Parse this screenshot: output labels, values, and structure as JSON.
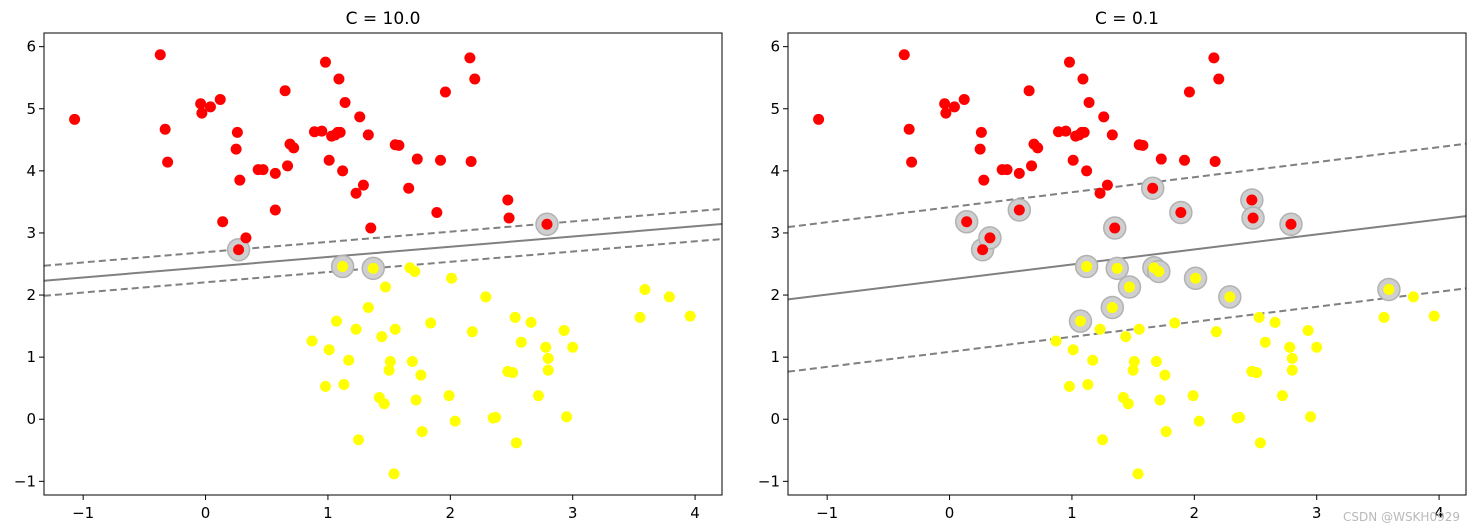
{
  "watermark": "CSDN @WSKH0929",
  "chart_data": [
    {
      "type": "scatter",
      "title": "C = 10.0",
      "xlim": [
        -1.32,
        4.22
      ],
      "ylim": [
        -1.22,
        6.22
      ],
      "xticks": [
        -1,
        0,
        1,
        2,
        3,
        4
      ],
      "yticks": [
        -1,
        0,
        1,
        2,
        3,
        4,
        5,
        6
      ],
      "decision_boundary": {
        "slope": 0.165,
        "intercept": 2.448,
        "margin": 0.2425
      },
      "series": [
        {
          "color": "#ff0000",
          "points": [
            [
              -1.07,
              4.83
            ],
            [
              -0.37,
              5.87
            ],
            [
              -0.33,
              4.67
            ],
            [
              -0.31,
              4.14
            ],
            [
              -0.04,
              5.08
            ],
            [
              -0.03,
              4.93
            ],
            [
              0.04,
              5.03
            ],
            [
              0.12,
              5.15
            ],
            [
              0.14,
              3.18
            ],
            [
              0.25,
              4.35
            ],
            [
              0.26,
              4.62
            ],
            [
              0.27,
              2.73
            ],
            [
              0.28,
              3.85
            ],
            [
              0.33,
              2.92
            ],
            [
              0.43,
              4.02
            ],
            [
              0.47,
              4.02
            ],
            [
              0.57,
              3.96
            ],
            [
              0.57,
              3.37
            ],
            [
              0.65,
              5.29
            ],
            [
              0.67,
              4.08
            ],
            [
              0.69,
              4.43
            ],
            [
              0.72,
              4.37
            ],
            [
              0.89,
              4.63
            ],
            [
              0.95,
              4.64
            ],
            [
              0.98,
              5.75
            ],
            [
              1.01,
              4.17
            ],
            [
              1.03,
              4.56
            ],
            [
              1.06,
              4.58
            ],
            [
              1.08,
              4.62
            ],
            [
              1.09,
              5.48
            ],
            [
              1.1,
              4.62
            ],
            [
              1.12,
              4.0
            ],
            [
              1.14,
              5.1
            ],
            [
              1.23,
              3.64
            ],
            [
              1.26,
              4.87
            ],
            [
              1.29,
              3.77
            ],
            [
              1.33,
              4.58
            ],
            [
              1.35,
              3.08
            ],
            [
              1.55,
              4.42
            ],
            [
              1.58,
              4.41
            ],
            [
              1.66,
              3.72
            ],
            [
              1.73,
              4.19
            ],
            [
              1.89,
              3.33
            ],
            [
              1.92,
              4.17
            ],
            [
              1.96,
              5.27
            ],
            [
              2.16,
              5.82
            ],
            [
              2.17,
              4.15
            ],
            [
              2.2,
              5.48
            ],
            [
              2.47,
              3.53
            ],
            [
              2.48,
              3.24
            ],
            [
              2.79,
              3.14
            ]
          ]
        },
        {
          "color": "#ffff00",
          "points": [
            [
              0.87,
              1.26
            ],
            [
              0.98,
              0.53
            ],
            [
              1.01,
              1.12
            ],
            [
              1.07,
              1.58
            ],
            [
              1.12,
              2.46
            ],
            [
              1.13,
              0.56
            ],
            [
              1.17,
              0.95
            ],
            [
              1.23,
              1.45
            ],
            [
              1.25,
              -0.33
            ],
            [
              1.33,
              1.8
            ],
            [
              1.37,
              2.43
            ],
            [
              1.42,
              0.35
            ],
            [
              1.44,
              1.33
            ],
            [
              1.46,
              0.25
            ],
            [
              1.47,
              2.13
            ],
            [
              1.5,
              0.79
            ],
            [
              1.51,
              0.93
            ],
            [
              1.54,
              -0.88
            ],
            [
              1.55,
              1.45
            ],
            [
              1.67,
              2.44
            ],
            [
              1.69,
              0.93
            ],
            [
              1.71,
              2.38
            ],
            [
              1.72,
              0.31
            ],
            [
              1.76,
              0.71
            ],
            [
              1.77,
              -0.2
            ],
            [
              1.84,
              1.55
            ],
            [
              1.99,
              0.38
            ],
            [
              2.01,
              2.27
            ],
            [
              2.04,
              -0.03
            ],
            [
              2.18,
              1.41
            ],
            [
              2.29,
              1.97
            ],
            [
              2.35,
              0.02
            ],
            [
              2.37,
              0.03
            ],
            [
              2.47,
              0.77
            ],
            [
              2.51,
              0.75
            ],
            [
              2.53,
              1.64
            ],
            [
              2.54,
              -0.38
            ],
            [
              2.58,
              1.24
            ],
            [
              2.66,
              1.56
            ],
            [
              2.72,
              0.38
            ],
            [
              2.78,
              1.16
            ],
            [
              2.8,
              0.79
            ],
            [
              2.8,
              0.98
            ],
            [
              2.93,
              1.43
            ],
            [
              2.95,
              0.04
            ],
            [
              3.0,
              1.16
            ],
            [
              3.55,
              1.64
            ],
            [
              3.59,
              2.09
            ],
            [
              3.79,
              1.97
            ],
            [
              3.96,
              1.66
            ]
          ]
        }
      ],
      "support_vectors": [
        [
          0.27,
          2.73
        ],
        [
          1.12,
          2.46
        ],
        [
          1.37,
          2.43
        ],
        [
          2.79,
          3.14
        ]
      ]
    },
    {
      "type": "scatter",
      "title": "C = 0.1",
      "xlim": [
        -1.32,
        4.22
      ],
      "ylim": [
        -1.22,
        6.22
      ],
      "xticks": [
        -1,
        0,
        1,
        2,
        3,
        4
      ],
      "yticks": [
        -1,
        0,
        1,
        2,
        3,
        4,
        5,
        6
      ],
      "decision_boundary": {
        "slope": 0.242,
        "intercept": 2.25,
        "margin": 1.1645
      },
      "series": [
        {
          "color": "#ff0000",
          "points": [
            [
              -1.07,
              4.83
            ],
            [
              -0.37,
              5.87
            ],
            [
              -0.33,
              4.67
            ],
            [
              -0.31,
              4.14
            ],
            [
              -0.04,
              5.08
            ],
            [
              -0.03,
              4.93
            ],
            [
              0.04,
              5.03
            ],
            [
              0.12,
              5.15
            ],
            [
              0.14,
              3.18
            ],
            [
              0.25,
              4.35
            ],
            [
              0.26,
              4.62
            ],
            [
              0.27,
              2.73
            ],
            [
              0.28,
              3.85
            ],
            [
              0.33,
              2.92
            ],
            [
              0.43,
              4.02
            ],
            [
              0.47,
              4.02
            ],
            [
              0.57,
              3.96
            ],
            [
              0.57,
              3.37
            ],
            [
              0.65,
              5.29
            ],
            [
              0.67,
              4.08
            ],
            [
              0.69,
              4.43
            ],
            [
              0.72,
              4.37
            ],
            [
              0.89,
              4.63
            ],
            [
              0.95,
              4.64
            ],
            [
              0.98,
              5.75
            ],
            [
              1.01,
              4.17
            ],
            [
              1.03,
              4.56
            ],
            [
              1.06,
              4.58
            ],
            [
              1.08,
              4.62
            ],
            [
              1.09,
              5.48
            ],
            [
              1.1,
              4.62
            ],
            [
              1.12,
              4.0
            ],
            [
              1.14,
              5.1
            ],
            [
              1.23,
              3.64
            ],
            [
              1.26,
              4.87
            ],
            [
              1.29,
              3.77
            ],
            [
              1.33,
              4.58
            ],
            [
              1.35,
              3.08
            ],
            [
              1.55,
              4.42
            ],
            [
              1.58,
              4.41
            ],
            [
              1.66,
              3.72
            ],
            [
              1.73,
              4.19
            ],
            [
              1.89,
              3.33
            ],
            [
              1.92,
              4.17
            ],
            [
              1.96,
              5.27
            ],
            [
              2.16,
              5.82
            ],
            [
              2.17,
              4.15
            ],
            [
              2.2,
              5.48
            ],
            [
              2.47,
              3.53
            ],
            [
              2.48,
              3.24
            ],
            [
              2.79,
              3.14
            ]
          ]
        },
        {
          "color": "#ffff00",
          "points": [
            [
              0.87,
              1.26
            ],
            [
              0.98,
              0.53
            ],
            [
              1.01,
              1.12
            ],
            [
              1.07,
              1.58
            ],
            [
              1.12,
              2.46
            ],
            [
              1.13,
              0.56
            ],
            [
              1.17,
              0.95
            ],
            [
              1.23,
              1.45
            ],
            [
              1.25,
              -0.33
            ],
            [
              1.33,
              1.8
            ],
            [
              1.37,
              2.43
            ],
            [
              1.42,
              0.35
            ],
            [
              1.44,
              1.33
            ],
            [
              1.46,
              0.25
            ],
            [
              1.47,
              2.13
            ],
            [
              1.5,
              0.79
            ],
            [
              1.51,
              0.93
            ],
            [
              1.54,
              -0.88
            ],
            [
              1.55,
              1.45
            ],
            [
              1.67,
              2.44
            ],
            [
              1.69,
              0.93
            ],
            [
              1.71,
              2.38
            ],
            [
              1.72,
              0.31
            ],
            [
              1.76,
              0.71
            ],
            [
              1.77,
              -0.2
            ],
            [
              1.84,
              1.55
            ],
            [
              1.99,
              0.38
            ],
            [
              2.01,
              2.27
            ],
            [
              2.04,
              -0.03
            ],
            [
              2.18,
              1.41
            ],
            [
              2.29,
              1.97
            ],
            [
              2.35,
              0.02
            ],
            [
              2.37,
              0.03
            ],
            [
              2.47,
              0.77
            ],
            [
              2.51,
              0.75
            ],
            [
              2.53,
              1.64
            ],
            [
              2.54,
              -0.38
            ],
            [
              2.58,
              1.24
            ],
            [
              2.66,
              1.56
            ],
            [
              2.72,
              0.38
            ],
            [
              2.78,
              1.16
            ],
            [
              2.8,
              0.79
            ],
            [
              2.8,
              0.98
            ],
            [
              2.93,
              1.43
            ],
            [
              2.95,
              0.04
            ],
            [
              3.0,
              1.16
            ],
            [
              3.55,
              1.64
            ],
            [
              3.59,
              2.09
            ],
            [
              3.79,
              1.97
            ],
            [
              3.96,
              1.66
            ]
          ]
        }
      ],
      "support_vectors": [
        [
          0.14,
          3.18
        ],
        [
          0.27,
          2.73
        ],
        [
          0.33,
          2.92
        ],
        [
          0.57,
          3.37
        ],
        [
          1.07,
          1.58
        ],
        [
          1.12,
          2.46
        ],
        [
          1.33,
          1.8
        ],
        [
          1.35,
          3.08
        ],
        [
          1.37,
          2.43
        ],
        [
          1.47,
          2.13
        ],
        [
          1.66,
          3.72
        ],
        [
          1.67,
          2.44
        ],
        [
          1.71,
          2.38
        ],
        [
          1.89,
          3.33
        ],
        [
          2.01,
          2.27
        ],
        [
          2.29,
          1.97
        ],
        [
          2.47,
          3.53
        ],
        [
          2.48,
          3.24
        ],
        [
          2.79,
          3.14
        ],
        [
          3.59,
          2.09
        ]
      ]
    }
  ]
}
